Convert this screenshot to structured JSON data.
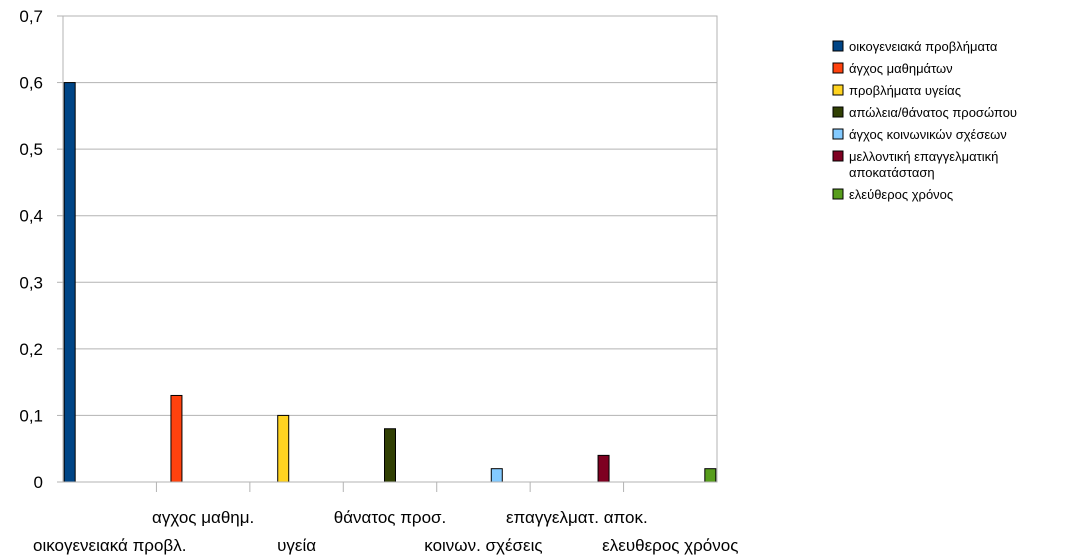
{
  "chart_data": {
    "type": "bar",
    "categories": [
      "οικογενειακά προβλ.",
      "αγχος μαθημ.",
      "υγεία",
      "θάνατος προσ.",
      "κοινων. σχέσεις",
      "επαγγελματ. αποκ.",
      "ελευθερος χρόνος"
    ],
    "series": [
      {
        "name": "οικογενειακά προβλήματα",
        "color": "#004586",
        "values": [
          0.6,
          0,
          0,
          0,
          0,
          0,
          0
        ]
      },
      {
        "name": "άγχος μαθημάτων",
        "color": "#ff420e",
        "values": [
          0,
          0.13,
          0,
          0,
          0,
          0,
          0
        ]
      },
      {
        "name": "προβλήματα υγείας",
        "color": "#ffd320",
        "values": [
          0,
          0,
          0.1,
          0,
          0,
          0,
          0
        ]
      },
      {
        "name": "απώλεια/θάνατος προσώπου",
        "color": "#314004",
        "values": [
          0,
          0,
          0,
          0.08,
          0,
          0,
          0
        ]
      },
      {
        "name": "άγχος κοινωνικών σχέσεων",
        "color": "#83caff",
        "values": [
          0,
          0,
          0,
          0,
          0.02,
          0,
          0
        ]
      },
      {
        "name": "μελλοντική επαγγελματική αποκατάσταση",
        "color": "#7e0021",
        "values": [
          0,
          0,
          0,
          0,
          0,
          0.04,
          0
        ]
      },
      {
        "name": "ελεύθερος χρόνος",
        "color": "#579d1c",
        "values": [
          0,
          0,
          0,
          0,
          0,
          0,
          0.02
        ]
      }
    ],
    "yticks": [
      "0",
      "0,1",
      "0,2",
      "0,3",
      "0,4",
      "0,5",
      "0,6",
      "0,7"
    ],
    "ylim": [
      0,
      0.7
    ],
    "grid": true,
    "legend_position": "right"
  }
}
